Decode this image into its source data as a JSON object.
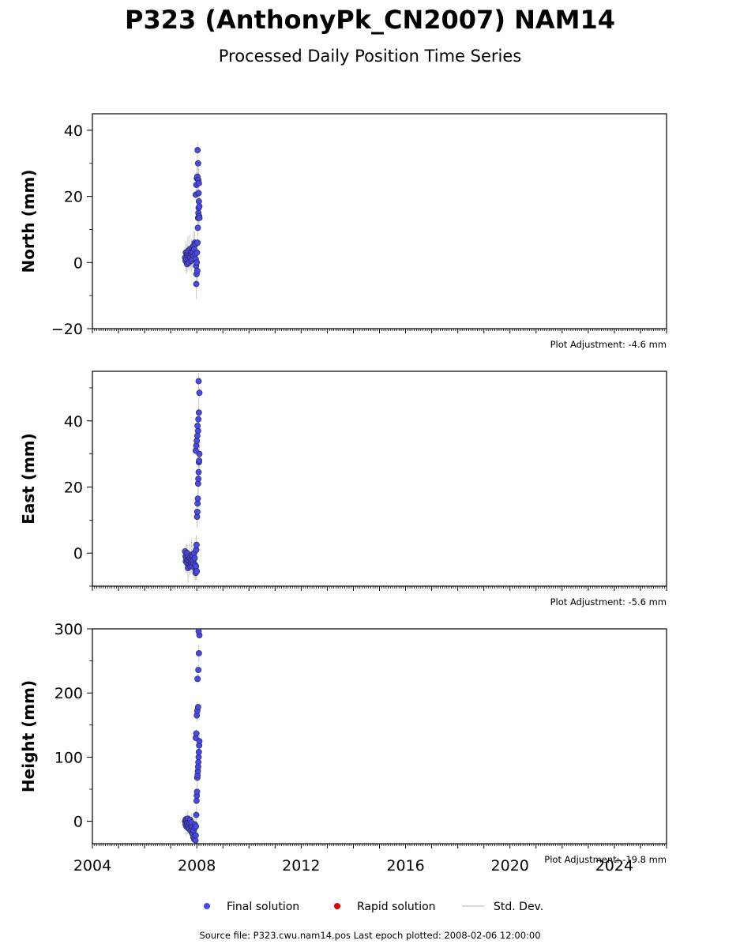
{
  "title": "P323 (AnthonyPk_CN2007) NAM14",
  "subtitle": "Processed Daily Position Time Series",
  "legend": {
    "final": "Final solution",
    "rapid": "Rapid solution",
    "stddev": "Std. Dev."
  },
  "footer": "Source file: P323.cwu.nam14.pos  Last epoch plotted: 2008-02-06 12:00:00",
  "colors": {
    "final": "#4848f0",
    "rapid": "#dd0000",
    "stddev": "#cccccc",
    "edge": "#222222"
  },
  "chart_data": [
    {
      "type": "scatter",
      "ylabel": "North (mm)",
      "adjustment": "Plot Adjustment: -4.6 mm",
      "xlim": [
        2004,
        2026
      ],
      "ylim": [
        -20,
        45
      ],
      "yticks": [
        -20,
        0,
        20,
        40
      ],
      "xticks": [],
      "series": [
        {
          "name": "Final solution",
          "x": [
            2007.55,
            2007.57,
            2007.58,
            2007.6,
            2007.62,
            2007.63,
            2007.65,
            2007.66,
            2007.68,
            2007.7,
            2007.72,
            2007.73,
            2007.75,
            2007.77,
            2007.78,
            2007.8,
            2007.82,
            2007.83,
            2007.85,
            2007.87,
            2007.88,
            2007.9,
            2007.92,
            2007.93,
            2007.95,
            2007.96,
            2007.97,
            2007.98,
            2007.99,
            2008.0,
            2008.01,
            2008.02,
            2008.03,
            2008.04,
            2008.05,
            2008.06,
            2008.07,
            2008.08,
            2008.09,
            2008.1,
            2007.96,
            2007.98,
            2008.0,
            2008.02,
            2008.05,
            2008.03,
            2008.06,
            2008.08,
            2008.1,
            2008.07
          ],
          "y": [
            1.5,
            0.5,
            3,
            1,
            2.5,
            -0.5,
            2,
            3.5,
            1,
            0,
            2,
            4,
            1.5,
            3,
            0.5,
            2.5,
            4.5,
            1,
            3,
            5,
            2,
            4,
            6,
            2.5,
            5.5,
            1,
            -1,
            -6.5,
            -3.5,
            0,
            3,
            -2.5,
            6,
            10.5,
            13.5,
            15,
            16.5,
            18.5,
            14,
            17,
            20.5,
            23.5,
            25.5,
            26,
            30,
            34,
            25,
            24,
            13.5,
            21
          ]
        }
      ],
      "std_dev": [
        1.5,
        4.5
      ]
    },
    {
      "type": "scatter",
      "ylabel": "East (mm)",
      "adjustment": "Plot Adjustment: -5.6 mm",
      "xlim": [
        2004,
        2026
      ],
      "ylim": [
        -10,
        55
      ],
      "yticks": [
        0,
        20,
        40
      ],
      "xticks": [],
      "series": [
        {
          "name": "Final solution",
          "x": [
            2007.55,
            2007.57,
            2007.58,
            2007.6,
            2007.62,
            2007.63,
            2007.65,
            2007.66,
            2007.68,
            2007.7,
            2007.72,
            2007.73,
            2007.75,
            2007.77,
            2007.78,
            2007.8,
            2007.82,
            2007.83,
            2007.85,
            2007.87,
            2007.88,
            2007.9,
            2007.92,
            2007.93,
            2007.95,
            2007.96,
            2007.97,
            2007.98,
            2007.99,
            2008.0,
            2008.01,
            2008.02,
            2008.03,
            2008.04,
            2008.05,
            2008.06,
            2008.07,
            2008.08,
            2008.09,
            2008.1,
            2007.96,
            2007.98,
            2008.0,
            2008.02,
            2008.05,
            2008.03,
            2008.06,
            2008.08,
            2008.1,
            2008.07
          ],
          "y": [
            0.5,
            -1,
            -2.5,
            -1.5,
            -3,
            0,
            -2,
            -4.5,
            -1,
            -2.5,
            -3.5,
            -1.5,
            -4,
            -2,
            -3,
            -0.5,
            -2.5,
            -4,
            -1,
            -3,
            -2,
            0,
            -1.5,
            -3.5,
            -5,
            -6,
            -4,
            1,
            2.5,
            -5.5,
            11,
            12.5,
            15,
            16.5,
            21,
            22.5,
            24.5,
            27.5,
            28,
            30,
            31,
            32.5,
            34,
            35.5,
            37,
            38.5,
            40.5,
            42.5,
            48.5,
            52
          ]
        }
      ],
      "std_dev": [
        1.5,
        4.5
      ]
    },
    {
      "type": "scatter",
      "ylabel": "Height (mm)",
      "adjustment": "Plot Adjustment: -19.8 mm",
      "xlim": [
        2004,
        2026
      ],
      "ylim": [
        -35,
        300
      ],
      "yticks": [
        0,
        100,
        200,
        300
      ],
      "xticks": [
        "2004",
        "2008",
        "2012",
        "2016",
        "2020",
        "2024"
      ],
      "series": [
        {
          "name": "Final solution",
          "x": [
            2007.55,
            2007.57,
            2007.58,
            2007.6,
            2007.62,
            2007.63,
            2007.65,
            2007.66,
            2007.68,
            2007.7,
            2007.72,
            2007.73,
            2007.75,
            2007.77,
            2007.78,
            2007.8,
            2007.82,
            2007.83,
            2007.85,
            2007.87,
            2007.88,
            2007.9,
            2007.92,
            2007.93,
            2007.95,
            2007.96,
            2007.97,
            2007.98,
            2007.99,
            2008.0,
            2008.01,
            2008.02,
            2008.03,
            2008.04,
            2008.05,
            2008.06,
            2008.07,
            2008.08,
            2008.09,
            2008.1,
            2007.96,
            2007.98,
            2008.0,
            2008.02,
            2008.05,
            2008.03,
            2008.06,
            2008.08,
            2008.1,
            2008.07
          ],
          "y": [
            0,
            -5,
            3,
            -8,
            2,
            -3,
            -10,
            4,
            -6,
            -1,
            -12,
            -4,
            2,
            -15,
            -7,
            -2,
            -18,
            -9,
            -20,
            -25,
            -14,
            -28,
            -10,
            -5,
            -30,
            -22,
            -8,
            10,
            32,
            40,
            46,
            68,
            72,
            78,
            85,
            92,
            100,
            108,
            118,
            125,
            130,
            137,
            165,
            172,
            178,
            222,
            236,
            262,
            290,
            296
          ]
        }
      ],
      "std_dev": [
        3,
        14
      ]
    }
  ]
}
